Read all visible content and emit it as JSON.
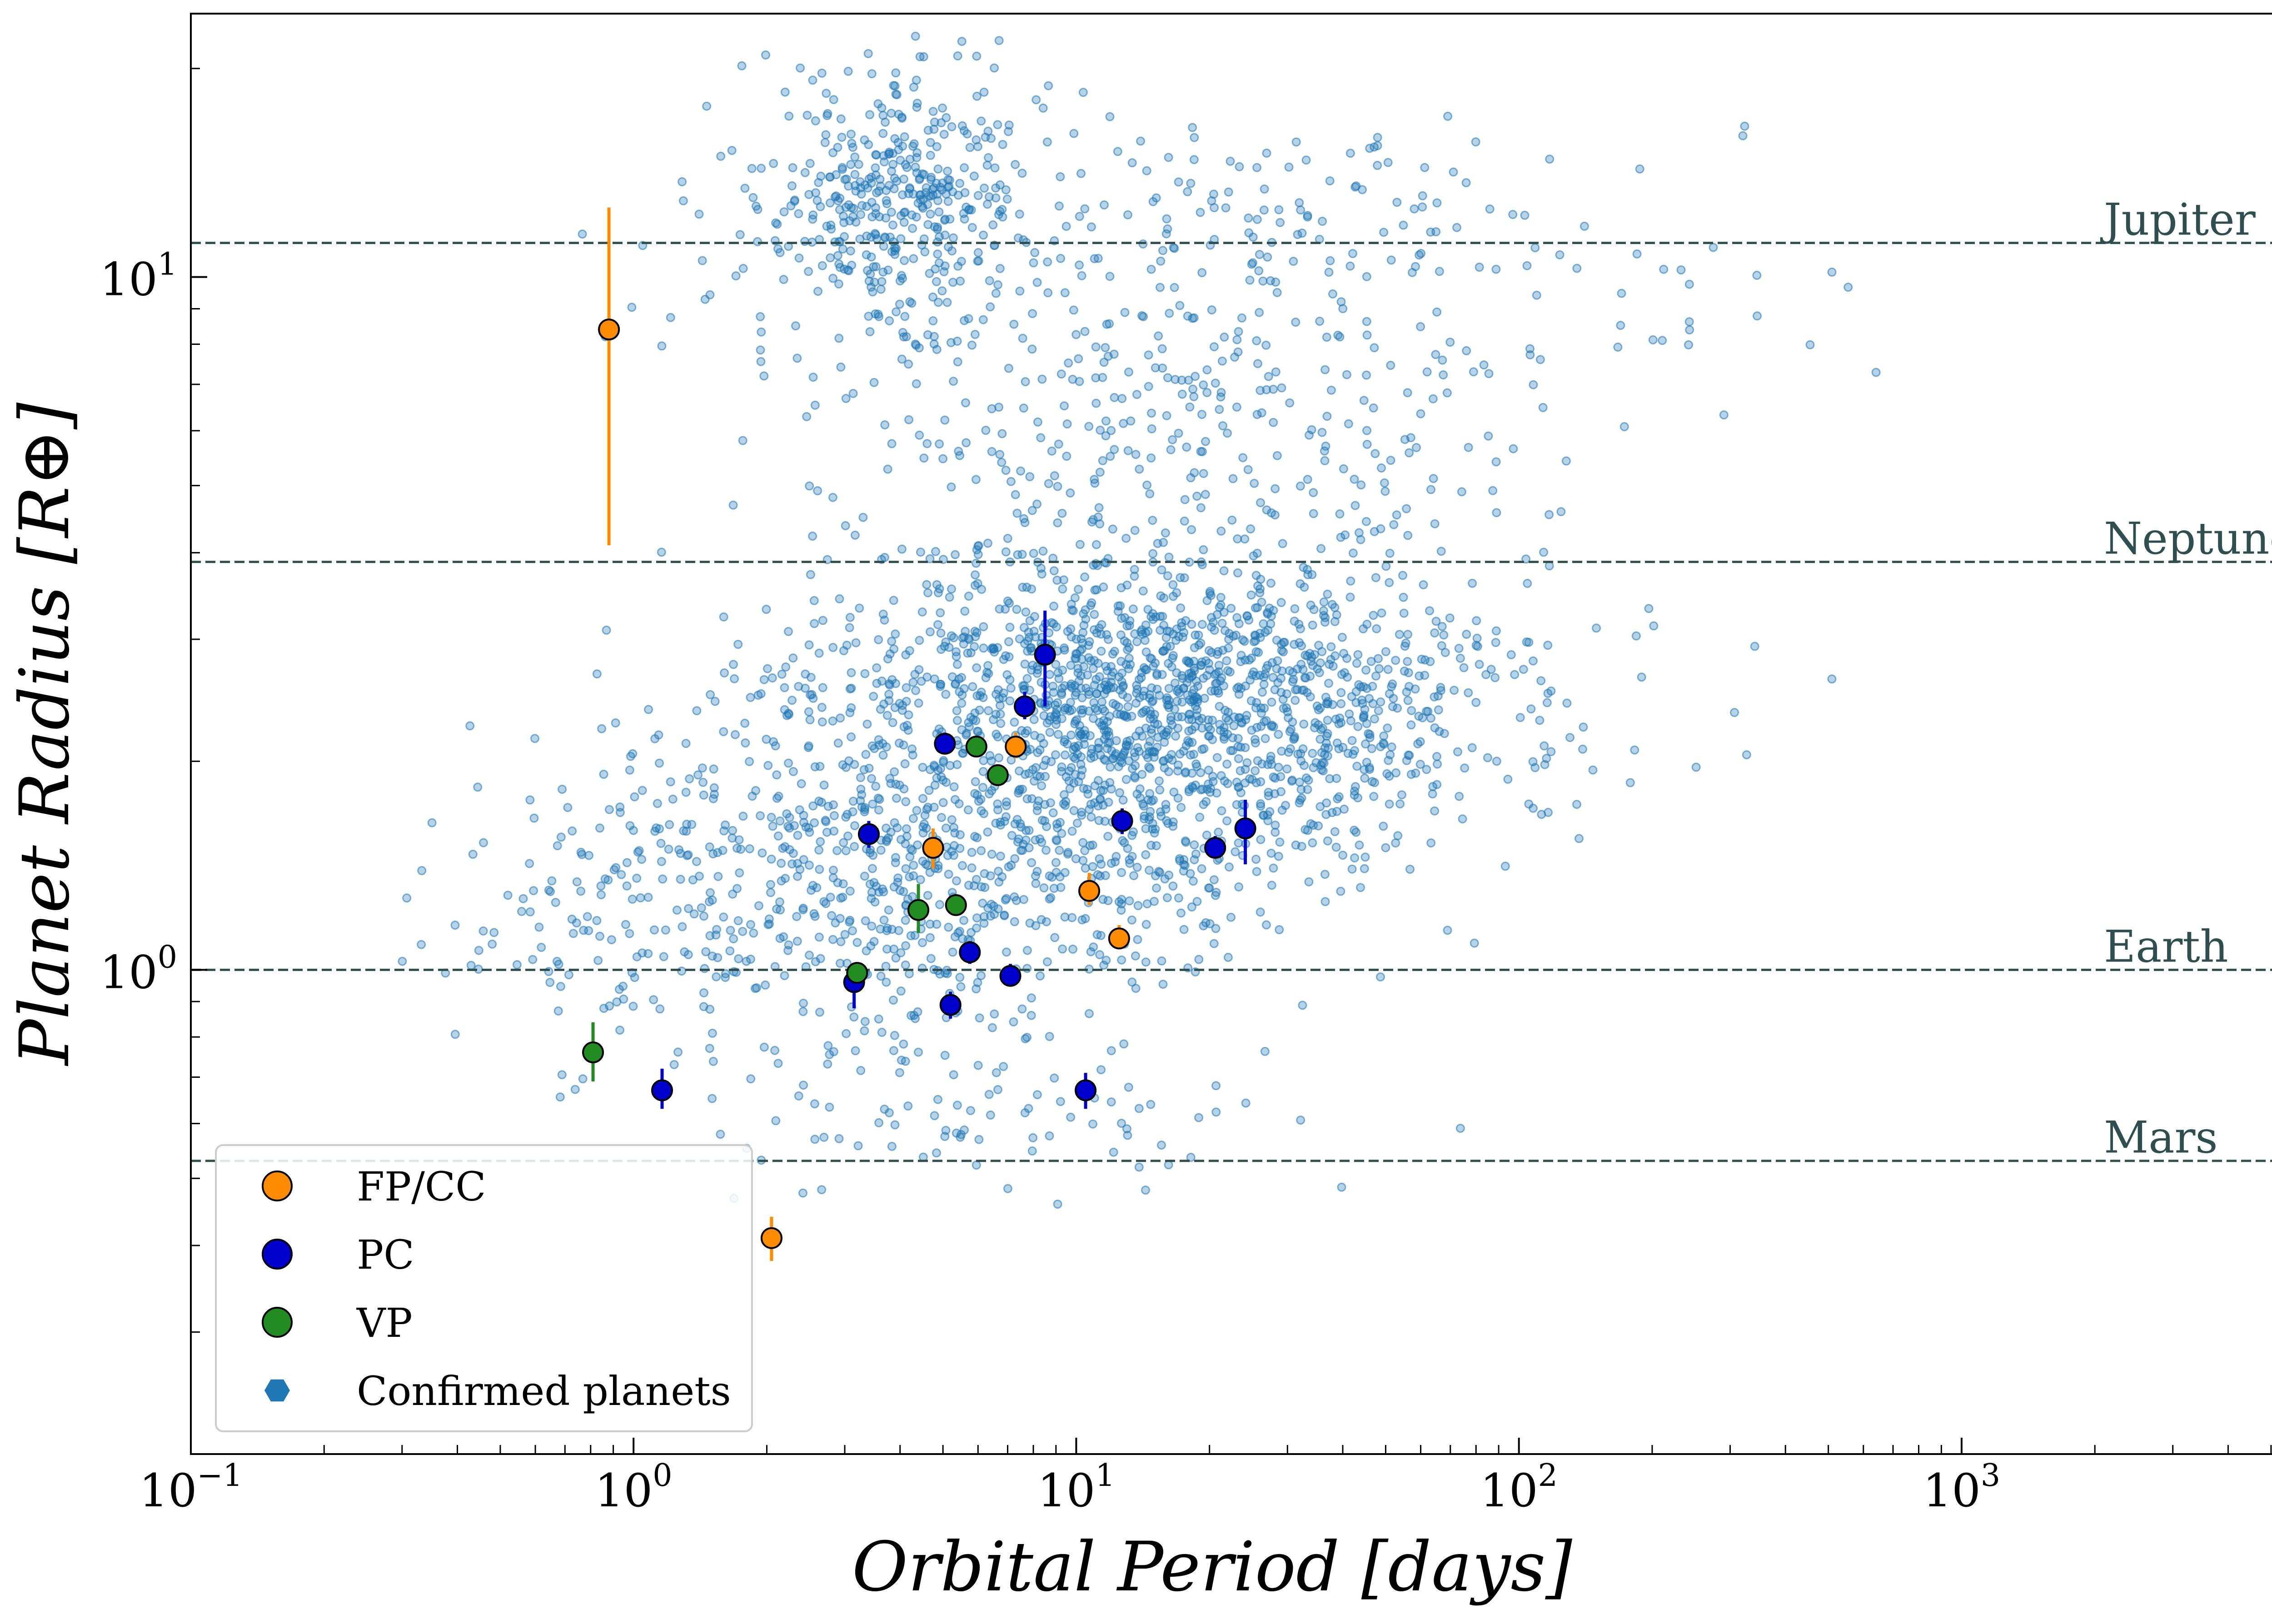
{
  "chart_data": {
    "type": "scatter",
    "xlabel": "Orbital Period [days]",
    "ylabel": "Planet Radius [R⊕]",
    "xscale": "log",
    "yscale": "log",
    "xlim": [
      0.1,
      6000
    ],
    "ylim": [
      0.2,
      24
    ],
    "x_ticks": [
      {
        "value": 0.1,
        "base": "10",
        "exp": "−1"
      },
      {
        "value": 1,
        "base": "10",
        "exp": "0"
      },
      {
        "value": 10,
        "base": "10",
        "exp": "1"
      },
      {
        "value": 100,
        "base": "10",
        "exp": "2"
      },
      {
        "value": 1000,
        "base": "10",
        "exp": "3"
      }
    ],
    "y_ticks": [
      {
        "value": 1,
        "base": "10",
        "exp": "0"
      },
      {
        "value": 10,
        "base": "10",
        "exp": "1"
      }
    ],
    "reference_lines": [
      {
        "label": "Jupiter",
        "radius": 11.2
      },
      {
        "label": "Neptune",
        "radius": 3.88
      },
      {
        "label": "Earth",
        "radius": 1.0
      },
      {
        "label": "Mars",
        "radius": 0.53
      }
    ],
    "legend": {
      "position": "lower-left",
      "entries": [
        {
          "label": "FP/CC",
          "color": "#ff8c00",
          "marker": "circle"
        },
        {
          "label": "PC",
          "color": "#0000cd",
          "marker": "circle"
        },
        {
          "label": "VP",
          "color": "#228b22",
          "marker": "circle"
        },
        {
          "label": "Confirmed planets",
          "color": "#1f77b4",
          "marker": "hexagon"
        }
      ]
    },
    "series": [
      {
        "name": "FP/CC",
        "color": "#ff8c00",
        "points": [
          {
            "x": 0.88,
            "y": 8.4,
            "yerr_low": 4.1,
            "yerr_high": 12.6
          },
          {
            "x": 2.05,
            "y": 0.41,
            "yerr_low": 0.38,
            "yerr_high": 0.44
          },
          {
            "x": 4.75,
            "y": 1.5,
            "yerr_low": 1.4,
            "yerr_high": 1.6
          },
          {
            "x": 7.3,
            "y": 2.1,
            "yerr_low": 2.02,
            "yerr_high": 2.2
          },
          {
            "x": 10.7,
            "y": 1.3,
            "yerr_low": 1.24,
            "yerr_high": 1.38
          },
          {
            "x": 12.5,
            "y": 1.11,
            "yerr_low": 1.07,
            "yerr_high": 1.16
          }
        ]
      },
      {
        "name": "PC",
        "color": "#0000cd",
        "points": [
          {
            "x": 1.16,
            "y": 0.67,
            "yerr_low": 0.63,
            "yerr_high": 0.72
          },
          {
            "x": 3.15,
            "y": 0.96,
            "yerr_low": 0.88,
            "yerr_high": 1.02
          },
          {
            "x": 3.4,
            "y": 1.57,
            "yerr_low": 1.5,
            "yerr_high": 1.64
          },
          {
            "x": 5.05,
            "y": 2.12,
            "yerr_low": 2.05,
            "yerr_high": 2.2
          },
          {
            "x": 5.2,
            "y": 0.89,
            "yerr_low": 0.85,
            "yerr_high": 0.93
          },
          {
            "x": 5.75,
            "y": 1.06,
            "yerr_low": 1.02,
            "yerr_high": 1.1
          },
          {
            "x": 7.1,
            "y": 0.98,
            "yerr_low": 0.95,
            "yerr_high": 1.02
          },
          {
            "x": 7.65,
            "y": 2.4,
            "yerr_low": 2.3,
            "yerr_high": 2.52
          },
          {
            "x": 8.5,
            "y": 2.85,
            "yerr_low": 2.4,
            "yerr_high": 3.3
          },
          {
            "x": 10.5,
            "y": 0.67,
            "yerr_low": 0.63,
            "yerr_high": 0.71
          },
          {
            "x": 12.7,
            "y": 1.64,
            "yerr_low": 1.57,
            "yerr_high": 1.71
          },
          {
            "x": 20.6,
            "y": 1.5,
            "yerr_low": 1.45,
            "yerr_high": 1.56
          },
          {
            "x": 24.1,
            "y": 1.6,
            "yerr_low": 1.42,
            "yerr_high": 1.76
          }
        ]
      },
      {
        "name": "VP",
        "color": "#228b22",
        "points": [
          {
            "x": 0.81,
            "y": 0.76,
            "yerr_low": 0.69,
            "yerr_high": 0.84
          },
          {
            "x": 3.2,
            "y": 0.99,
            "yerr_low": 0.96,
            "yerr_high": 1.02
          },
          {
            "x": 4.4,
            "y": 1.22,
            "yerr_low": 1.13,
            "yerr_high": 1.33
          },
          {
            "x": 5.35,
            "y": 1.24,
            "yerr_low": 1.2,
            "yerr_high": 1.28
          },
          {
            "x": 5.95,
            "y": 2.1,
            "yerr_low": 2.05,
            "yerr_high": 2.16
          },
          {
            "x": 6.65,
            "y": 1.91,
            "yerr_low": 1.86,
            "yerr_high": 1.96
          }
        ]
      }
    ],
    "background_population": {
      "name": "Confirmed planets",
      "color": "#1f77b4",
      "seed": 20240521,
      "clusters": [
        {
          "n": 380,
          "logx": [
            0.58,
            0.16
          ],
          "logy": [
            1.12,
            0.09
          ],
          "logx_range": [
            -0.3,
            1.7
          ],
          "logy_range": [
            0.88,
            1.38
          ]
        },
        {
          "n": 260,
          "logx": [
            1.3,
            0.6
          ],
          "logy": [
            1.03,
            0.1
          ],
          "logx_range": [
            -0.2,
            3.2
          ],
          "logy_range": [
            0.85,
            1.3
          ]
        },
        {
          "n": 1700,
          "logx": [
            1.15,
            0.42
          ],
          "logy": [
            0.38,
            0.12
          ],
          "logx_range": [
            -0.3,
            2.8
          ],
          "logy_range": [
            0.0,
            0.68
          ]
        },
        {
          "n": 600,
          "logx": [
            0.72,
            0.38
          ],
          "logy": [
            0.13,
            0.11
          ],
          "logx_range": [
            -0.7,
            2.2
          ],
          "logy_range": [
            -0.3,
            0.45
          ]
        },
        {
          "n": 170,
          "logx": [
            0.05,
            0.28
          ],
          "logy": [
            0.1,
            0.11
          ],
          "logx_range": [
            -0.75,
            0.6
          ],
          "logy_range": [
            -0.2,
            0.4
          ]
        },
        {
          "n": 260,
          "logx": [
            1.2,
            0.45
          ],
          "logy": [
            0.78,
            0.1
          ],
          "logx_range": [
            0.2,
            3.0
          ],
          "logy_range": [
            0.6,
            0.95
          ]
        },
        {
          "n": 90,
          "logx": [
            0.75,
            0.35
          ],
          "logy": [
            -0.2,
            0.08
          ],
          "logx_range": [
            -0.5,
            1.6
          ],
          "logy_range": [
            -0.35,
            -0.05
          ]
        }
      ]
    }
  }
}
